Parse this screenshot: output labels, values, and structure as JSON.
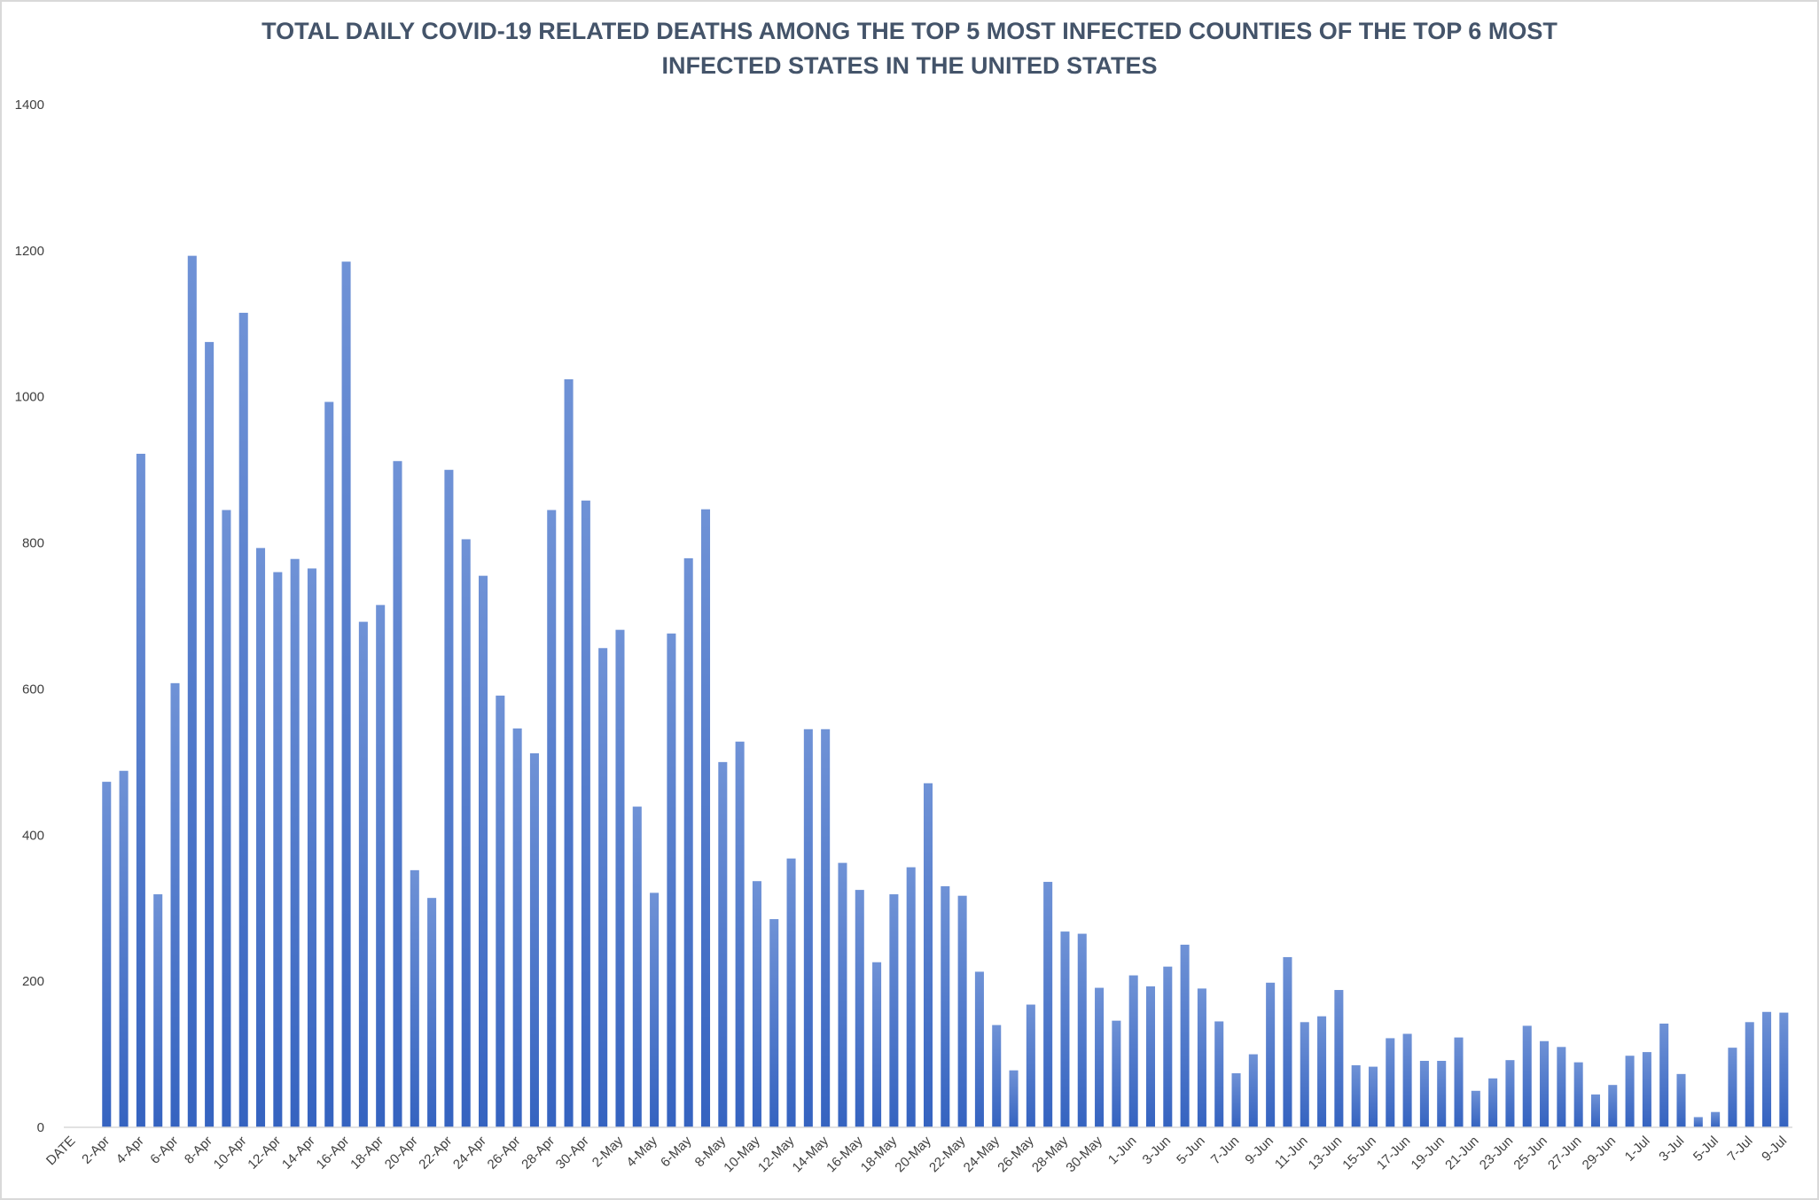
{
  "chart_data": {
    "type": "bar",
    "title": "TOTAL DAILY COVID-19 RELATED DEATHS AMONG THE TOP 5 MOST INFECTED COUNTIES OF THE TOP 6 MOST INFECTED STATES IN THE UNITED STATES",
    "categories": [
      "DATE",
      null,
      "2-Apr",
      null,
      "4-Apr",
      null,
      "6-Apr",
      null,
      "8-Apr",
      null,
      "10-Apr",
      null,
      "12-Apr",
      null,
      "14-Apr",
      null,
      "16-Apr",
      null,
      "18-Apr",
      null,
      "20-Apr",
      null,
      "22-Apr",
      null,
      "24-Apr",
      null,
      "26-Apr",
      null,
      "28-Apr",
      null,
      "30-Apr",
      null,
      "2-May",
      null,
      "4-May",
      null,
      "6-May",
      null,
      "8-May",
      null,
      "10-May",
      null,
      "12-May",
      null,
      "14-May",
      null,
      "16-May",
      null,
      "18-May",
      null,
      "20-May",
      null,
      "22-May",
      null,
      "24-May",
      null,
      "26-May",
      null,
      "28-May",
      null,
      "30-May",
      null,
      "1-Jun",
      null,
      "3-Jun",
      null,
      "5-Jun",
      null,
      "7-Jun",
      null,
      "9-Jun",
      null,
      "11-Jun",
      null,
      "13-Jun",
      null,
      "15-Jun",
      null,
      "17-Jun",
      null,
      "19-Jun",
      null,
      "21-Jun",
      null,
      "23-Jun",
      null,
      "25-Jun",
      null,
      "27-Jun",
      null,
      "29-Jun",
      null,
      "1-Jul",
      null,
      "3-Jul",
      null,
      "5-Jul",
      null,
      "7-Jul",
      null,
      "9-Jul"
    ],
    "values": [
      null,
      null,
      473,
      488,
      922,
      319,
      608,
      1193,
      1075,
      845,
      1115,
      793,
      760,
      778,
      765,
      993,
      1185,
      692,
      715,
      912,
      352,
      314,
      900,
      805,
      755,
      591,
      546,
      512,
      845,
      1024,
      858,
      656,
      681,
      439,
      321,
      676,
      779,
      846,
      500,
      528,
      337,
      285,
      368,
      545,
      545,
      362,
      325,
      226,
      319,
      356,
      471,
      330,
      317,
      213,
      140,
      78,
      168,
      336,
      268,
      265,
      191,
      146,
      208,
      193,
      220,
      250,
      190,
      145,
      74,
      100,
      198,
      233,
      144,
      152,
      188,
      85,
      83,
      122,
      128,
      91,
      91,
      123,
      50,
      67,
      92,
      139,
      118,
      110,
      89,
      45,
      58,
      98,
      103,
      142,
      73,
      14,
      21,
      109,
      144,
      158,
      157
    ],
    "color": "#4472c4",
    "ylim": [
      0,
      1400
    ],
    "yticks": [
      0,
      200,
      400,
      600,
      800,
      1000,
      1200,
      1400
    ],
    "grid": false
  }
}
